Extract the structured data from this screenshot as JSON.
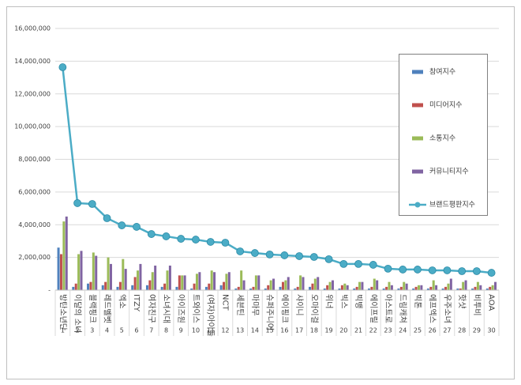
{
  "chart_data": {
    "type": "bar-line",
    "categories": [
      "방탄소년단",
      "이달의 소녀",
      "블랙핑크",
      "레드벨벳",
      "엑소",
      "ITZY",
      "여자친구",
      "소녀시대",
      "아이즈원",
      "트와이스",
      "(여자)아이들",
      "NCT",
      "세븐틴",
      "마마무",
      "슈퍼주니어",
      "에이핑크",
      "샤이니",
      "오마이걸",
      "위너",
      "빅스",
      "빅뱅",
      "에이프릴",
      "아스트로",
      "드림캐쳐",
      "빅톤",
      "에프엑스",
      "우주소녀",
      "핫샷",
      "비투비",
      "AOA"
    ],
    "category_numbers": [
      "1",
      "2",
      "3",
      "4",
      "5",
      "6",
      "7",
      "8",
      "9",
      "10",
      "11",
      "12",
      "13",
      "14",
      "15",
      "16",
      "17",
      "18",
      "19",
      "20",
      "21",
      "22",
      "23",
      "24",
      "25",
      "26",
      "27",
      "28",
      "29",
      "30"
    ],
    "ylim": [
      0,
      16000000
    ],
    "yticks": [
      {
        "value": 0,
        "label": "-"
      },
      {
        "value": 2000000,
        "label": "2,000,000"
      },
      {
        "value": 4000000,
        "label": "4,000,000"
      },
      {
        "value": 6000000,
        "label": "6,000,000"
      },
      {
        "value": 8000000,
        "label": "8,000,000"
      },
      {
        "value": 10000000,
        "label": "10,000,000"
      },
      {
        "value": 12000000,
        "label": "12,000,000"
      },
      {
        "value": 14000000,
        "label": "14,000,000"
      },
      {
        "value": 16000000,
        "label": "16,000,000"
      }
    ],
    "grid": true,
    "legend": "right",
    "series": [
      {
        "name": "참여지수",
        "type": "bar",
        "color": "#4f81bd",
        "values": [
          2600000,
          200000,
          400000,
          300000,
          200000,
          300000,
          300000,
          200000,
          200000,
          100000,
          200000,
          300000,
          100000,
          100000,
          100000,
          200000,
          100000,
          200000,
          100000,
          100000,
          100000,
          100000,
          100000,
          100000,
          100000,
          100000,
          100000,
          100000,
          100000,
          100000
        ]
      },
      {
        "name": "미디어지수",
        "type": "bar",
        "color": "#c0504d",
        "values": [
          2200000,
          400000,
          500000,
          500000,
          500000,
          800000,
          600000,
          400000,
          900000,
          400000,
          400000,
          500000,
          200000,
          200000,
          300000,
          500000,
          200000,
          400000,
          300000,
          300000,
          200000,
          200000,
          200000,
          200000,
          200000,
          200000,
          200000,
          100000,
          200000,
          200000
        ]
      },
      {
        "name": "소통지수",
        "type": "bar",
        "color": "#9bbb59",
        "values": [
          4200000,
          2200000,
          2300000,
          2000000,
          1900000,
          1200000,
          1100000,
          1200000,
          900000,
          1000000,
          1200000,
          1000000,
          1200000,
          900000,
          600000,
          600000,
          900000,
          700000,
          500000,
          400000,
          500000,
          700000,
          500000,
          500000,
          300000,
          600000,
          400000,
          500000,
          500000,
          300000
        ]
      },
      {
        "name": "커뮤니티지수",
        "type": "bar",
        "color": "#8064a2",
        "values": [
          4500000,
          2400000,
          2100000,
          1600000,
          1300000,
          1600000,
          1500000,
          1500000,
          900000,
          1100000,
          1100000,
          1100000,
          600000,
          900000,
          700000,
          800000,
          800000,
          800000,
          600000,
          300000,
          500000,
          600000,
          300000,
          400000,
          300000,
          300000,
          700000,
          600000,
          300000,
          500000
        ]
      },
      {
        "name": "브랜드평판지수",
        "type": "line",
        "color": "#4bacc6",
        "values": [
          13630000,
          5320000,
          5270000,
          4400000,
          3960000,
          3870000,
          3430000,
          3290000,
          3140000,
          3090000,
          2950000,
          2900000,
          2370000,
          2270000,
          2180000,
          2130000,
          2080000,
          2030000,
          1890000,
          1600000,
          1600000,
          1550000,
          1310000,
          1260000,
          1260000,
          1210000,
          1210000,
          1160000,
          1160000,
          1060000
        ]
      }
    ]
  }
}
